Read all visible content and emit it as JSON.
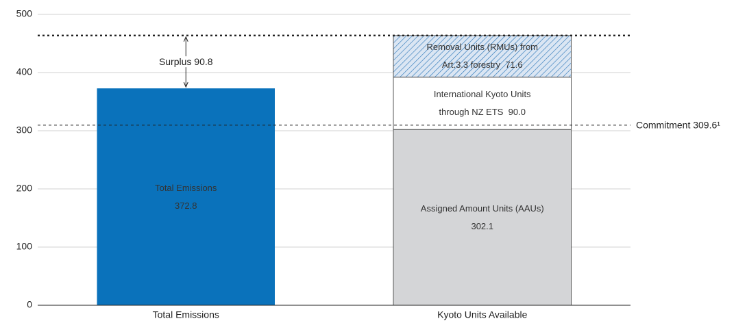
{
  "chart_data": {
    "type": "stacked_bar",
    "categories": [
      "Total Emissions",
      "Kyoto Units Available"
    ],
    "series": [
      {
        "name": "Total Emissions",
        "color": "#0a72bb",
        "values": [
          372.8,
          null
        ],
        "value_labels": [
          "372.8",
          null
        ]
      },
      {
        "name": "Assigned Amount Units (AAUs)",
        "color": "#d4d5d7",
        "values": [
          null,
          302.1
        ]
      },
      {
        "name": "International Kyoto Units through NZ ETS",
        "color": "#ffffff",
        "values": [
          null,
          90.0
        ],
        "value_labels": [
          null,
          "90.0"
        ]
      },
      {
        "name": "Removal Units (RMUs) from Art.3.3 forestry",
        "color": "#1f6fb5",
        "pattern": "hatch",
        "values": [
          null,
          71.6
        ]
      }
    ],
    "ylim": [
      0,
      500
    ],
    "yticks": [
      0,
      100,
      200,
      300,
      400,
      500
    ],
    "grid": true,
    "reference_line": {
      "value": 309.6,
      "label": "Commitment 309.6¹"
    },
    "annotations": [
      {
        "text": "Surplus 90.8"
      }
    ]
  }
}
